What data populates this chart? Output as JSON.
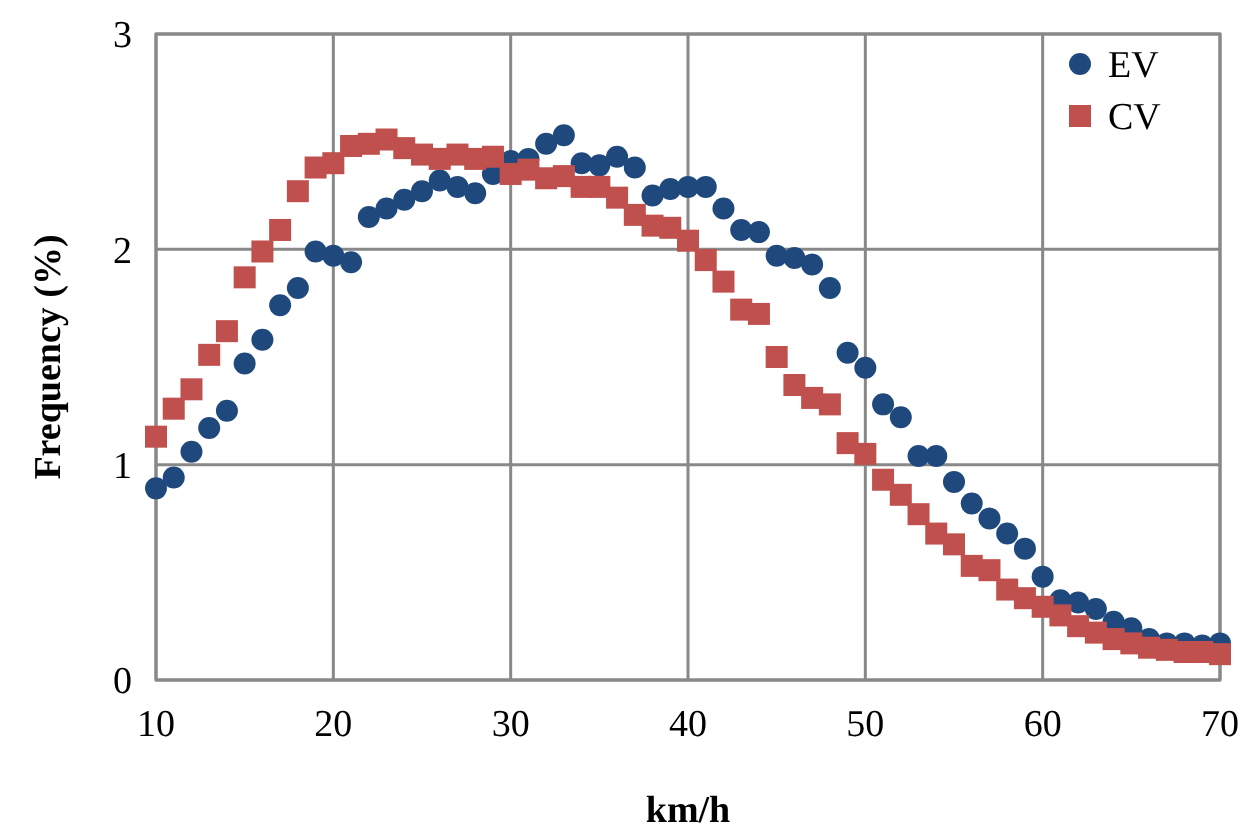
{
  "chart_data": {
    "type": "scatter",
    "xlabel": "km/h",
    "ylabel": "Frequency (%)",
    "x": [
      10,
      11,
      12,
      13,
      14,
      15,
      16,
      17,
      18,
      19,
      20,
      21,
      22,
      23,
      24,
      25,
      26,
      27,
      28,
      29,
      30,
      31,
      32,
      33,
      34,
      35,
      36,
      37,
      38,
      39,
      40,
      41,
      42,
      43,
      44,
      45,
      46,
      47,
      48,
      49,
      50,
      51,
      52,
      53,
      54,
      55,
      56,
      57,
      58,
      59,
      60,
      61,
      62,
      63,
      64,
      65,
      66,
      67,
      68,
      69,
      70
    ],
    "series": [
      {
        "name": "EV",
        "color": "#1f497d",
        "marker": "circle",
        "values": [
          0.89,
          0.94,
          1.06,
          1.17,
          1.25,
          1.47,
          1.58,
          1.74,
          1.82,
          1.99,
          1.97,
          1.94,
          2.15,
          2.19,
          2.23,
          2.27,
          2.32,
          2.29,
          2.26,
          2.35,
          2.41,
          2.42,
          2.49,
          2.53,
          2.4,
          2.39,
          2.43,
          2.38,
          2.25,
          2.28,
          2.29,
          2.29,
          2.19,
          2.09,
          2.08,
          1.97,
          1.96,
          1.93,
          1.82,
          1.52,
          1.45,
          1.28,
          1.22,
          1.04,
          1.04,
          0.92,
          0.82,
          0.75,
          0.68,
          0.61,
          0.48,
          0.37,
          0.36,
          0.33,
          0.27,
          0.24,
          0.19,
          0.17,
          0.17,
          0.16,
          0.17
        ]
      },
      {
        "name": "CV",
        "color": "#c0504d",
        "marker": "square",
        "values": [
          1.13,
          1.26,
          1.35,
          1.51,
          1.62,
          1.87,
          1.99,
          2.09,
          2.27,
          2.38,
          2.4,
          2.48,
          2.49,
          2.51,
          2.47,
          2.44,
          2.42,
          2.44,
          2.42,
          2.43,
          2.35,
          2.37,
          2.33,
          2.34,
          2.29,
          2.29,
          2.24,
          2.16,
          2.11,
          2.1,
          2.04,
          1.95,
          1.85,
          1.72,
          1.7,
          1.5,
          1.37,
          1.31,
          1.28,
          1.1,
          1.05,
          0.93,
          0.86,
          0.77,
          0.68,
          0.63,
          0.53,
          0.51,
          0.42,
          0.38,
          0.34,
          0.3,
          0.25,
          0.22,
          0.19,
          0.17,
          0.15,
          0.14,
          0.13,
          0.13,
          0.12
        ]
      }
    ],
    "xlim": [
      10,
      70
    ],
    "xticks": [
      10,
      20,
      30,
      40,
      50,
      60,
      70
    ],
    "ylim": [
      0,
      3
    ],
    "yticks": [
      0,
      1,
      2,
      3
    ],
    "grid": true,
    "legend": "top right"
  }
}
